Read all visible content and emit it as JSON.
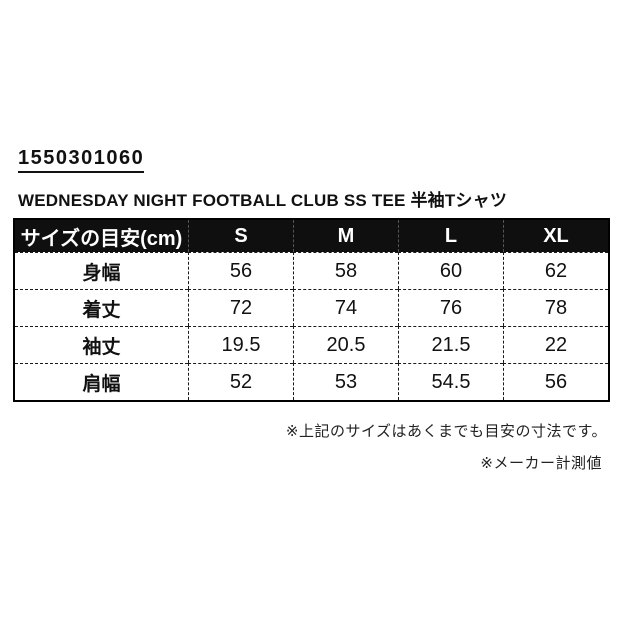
{
  "page": {
    "product_code": "1550301060",
    "product_title": "WEDNESDAY NIGHT FOOTBALL CLUB SS TEE 半袖Tシャツ"
  },
  "size_table": {
    "header": [
      "サイズの目安(cm)",
      "S",
      "M",
      "L",
      "XL"
    ],
    "rows": [
      {
        "label": "身幅",
        "values": [
          "56",
          "58",
          "60",
          "62"
        ]
      },
      {
        "label": "着丈",
        "values": [
          "72",
          "74",
          "76",
          "78"
        ]
      },
      {
        "label": "袖丈",
        "values": [
          "19.5",
          "20.5",
          "21.5",
          "22"
        ]
      },
      {
        "label": "肩幅",
        "values": [
          "52",
          "53",
          "54.5",
          "56"
        ]
      }
    ]
  },
  "notes": [
    "※上記のサイズはあくまでも目安の寸法です。",
    "※メーカー計測値"
  ],
  "colors": {
    "background": "#ffffff",
    "header_bg": "#0f0f0f",
    "header_text": "#ffffff",
    "body_text": "#111111",
    "border": "#000000"
  }
}
